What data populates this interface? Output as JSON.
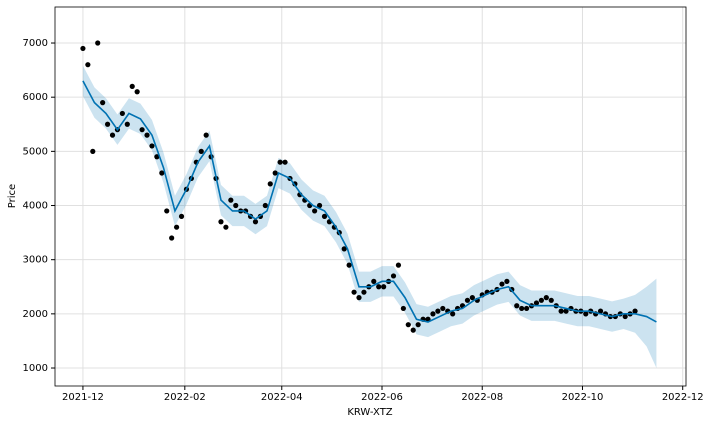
{
  "chart_data": {
    "type": "forecast",
    "xlabel": "KRW-XTZ",
    "ylabel": "Price",
    "xlim": [
      "2021-11-14",
      "2022-12-03"
    ],
    "ylim": [
      668,
      7665
    ],
    "xticks": [
      {
        "value": "2021-12-01",
        "label": "2021-12"
      },
      {
        "value": "2022-02-01",
        "label": "2022-02"
      },
      {
        "value": "2022-04-01",
        "label": "2022-04"
      },
      {
        "value": "2022-06-01",
        "label": "2022-06"
      },
      {
        "value": "2022-08-01",
        "label": "2022-08"
      },
      {
        "value": "2022-10-01",
        "label": "2022-10"
      },
      {
        "value": "2022-12-01",
        "label": "2022-12"
      }
    ],
    "yticks": [
      1000,
      2000,
      3000,
      4000,
      5000,
      6000,
      7000
    ],
    "grid": true,
    "series": [
      {
        "type": "scatter",
        "color": "#000000",
        "x": [
          "2021-12-01",
          "2021-12-04",
          "2021-12-07",
          "2021-12-10",
          "2021-12-13",
          "2021-12-16",
          "2021-12-19",
          "2021-12-22",
          "2021-12-25",
          "2021-12-28",
          "2021-12-31",
          "2022-01-03",
          "2022-01-06",
          "2022-01-09",
          "2022-01-12",
          "2022-01-15",
          "2022-01-18",
          "2022-01-21",
          "2022-01-24",
          "2022-01-27",
          "2022-01-30",
          "2022-02-02",
          "2022-02-05",
          "2022-02-08",
          "2022-02-11",
          "2022-02-14",
          "2022-02-17",
          "2022-02-20",
          "2022-02-23",
          "2022-02-26",
          "2022-03-01",
          "2022-03-04",
          "2022-03-07",
          "2022-03-10",
          "2022-03-13",
          "2022-03-16",
          "2022-03-19",
          "2022-03-22",
          "2022-03-25",
          "2022-03-28",
          "2022-03-31",
          "2022-04-03",
          "2022-04-06",
          "2022-04-09",
          "2022-04-12",
          "2022-04-15",
          "2022-04-18",
          "2022-04-21",
          "2022-04-24",
          "2022-04-27",
          "2022-04-30",
          "2022-05-03",
          "2022-05-06",
          "2022-05-09",
          "2022-05-12",
          "2022-05-15",
          "2022-05-18",
          "2022-05-21",
          "2022-05-24",
          "2022-05-27",
          "2022-05-30",
          "2022-06-02",
          "2022-06-05",
          "2022-06-08",
          "2022-06-11",
          "2022-06-14",
          "2022-06-17",
          "2022-06-20",
          "2022-06-23",
          "2022-06-26",
          "2022-06-29",
          "2022-07-02",
          "2022-07-05",
          "2022-07-08",
          "2022-07-11",
          "2022-07-14",
          "2022-07-17",
          "2022-07-20",
          "2022-07-23",
          "2022-07-26",
          "2022-07-29",
          "2022-08-01",
          "2022-08-04",
          "2022-08-07",
          "2022-08-10",
          "2022-08-13",
          "2022-08-16",
          "2022-08-19",
          "2022-08-22",
          "2022-08-25",
          "2022-08-28",
          "2022-08-31",
          "2022-09-03",
          "2022-09-06",
          "2022-09-09",
          "2022-09-12",
          "2022-09-15",
          "2022-09-18",
          "2022-09-21",
          "2022-09-24",
          "2022-09-27",
          "2022-09-30",
          "2022-10-03",
          "2022-10-06",
          "2022-10-09",
          "2022-10-12",
          "2022-10-15",
          "2022-10-18",
          "2022-10-21",
          "2022-10-24",
          "2022-10-27",
          "2022-10-30",
          "2022-11-02"
        ],
        "values": [
          6900,
          6600,
          5000,
          7000,
          5900,
          5500,
          5300,
          5400,
          5700,
          5500,
          6200,
          6100,
          5400,
          5300,
          5100,
          4900,
          4600,
          3900,
          3400,
          3600,
          3800,
          4300,
          4500,
          4800,
          5000,
          5300,
          4900,
          4500,
          3700,
          3600,
          4100,
          4000,
          3900,
          3900,
          3800,
          3700,
          3800,
          4000,
          4400,
          4600,
          4800,
          4800,
          4500,
          4400,
          4200,
          4100,
          4000,
          3900,
          4000,
          3800,
          3700,
          3600,
          3500,
          3200,
          2900,
          2400,
          2300,
          2400,
          2500,
          2600,
          2500,
          2500,
          2600,
          2700,
          2900,
          2100,
          1800,
          1700,
          1800,
          1900,
          1900,
          2000,
          2050,
          2100,
          2050,
          2000,
          2100,
          2150,
          2250,
          2300,
          2250,
          2350,
          2400,
          2400,
          2450,
          2550,
          2600,
          2450,
          2150,
          2100,
          2100,
          2150,
          2200,
          2250,
          2300,
          2250,
          2150,
          2050,
          2050,
          2100,
          2050,
          2050,
          2000,
          2050,
          2000,
          2050,
          2000,
          1950,
          1950,
          2000,
          1950,
          2000,
          2050
        ]
      },
      {
        "type": "forecast-line",
        "color": "#0072b2",
        "band_color": "#0072b2",
        "x": [
          "2021-12-01",
          "2021-12-08",
          "2021-12-15",
          "2021-12-22",
          "2021-12-29",
          "2022-01-05",
          "2022-01-12",
          "2022-01-19",
          "2022-01-26",
          "2022-02-02",
          "2022-02-09",
          "2022-02-16",
          "2022-02-23",
          "2022-03-02",
          "2022-03-09",
          "2022-03-16",
          "2022-03-23",
          "2022-03-30",
          "2022-04-06",
          "2022-04-13",
          "2022-04-20",
          "2022-04-27",
          "2022-05-04",
          "2022-05-11",
          "2022-05-18",
          "2022-05-25",
          "2022-06-01",
          "2022-06-08",
          "2022-06-15",
          "2022-06-22",
          "2022-06-29",
          "2022-07-06",
          "2022-07-13",
          "2022-07-20",
          "2022-07-27",
          "2022-08-03",
          "2022-08-10",
          "2022-08-17",
          "2022-08-24",
          "2022-08-31",
          "2022-09-07",
          "2022-09-14",
          "2022-09-21",
          "2022-09-28",
          "2022-10-05",
          "2022-10-12",
          "2022-10-19",
          "2022-10-26",
          "2022-11-02",
          "2022-11-09",
          "2022-11-15"
        ],
        "values": [
          6300,
          5900,
          5700,
          5400,
          5700,
          5600,
          5300,
          4700,
          3900,
          4300,
          4800,
          5100,
          4100,
          3900,
          3900,
          3750,
          3900,
          4600,
          4500,
          4200,
          4000,
          3900,
          3600,
          3200,
          2500,
          2500,
          2600,
          2600,
          2300,
          1900,
          1850,
          1950,
          2050,
          2100,
          2250,
          2350,
          2450,
          2500,
          2250,
          2150,
          2150,
          2150,
          2100,
          2050,
          2050,
          2000,
          1950,
          2000,
          2000,
          1950,
          1850
        ],
        "lower": [
          6020,
          5620,
          5420,
          5120,
          5420,
          5320,
          5020,
          4420,
          3620,
          4020,
          4520,
          4820,
          3820,
          3620,
          3620,
          3470,
          3620,
          4320,
          4220,
          3920,
          3720,
          3620,
          3320,
          2920,
          2220,
          2220,
          2320,
          2320,
          2020,
          1620,
          1570,
          1670,
          1770,
          1820,
          1970,
          2070,
          2170,
          2220,
          1970,
          1870,
          1870,
          1870,
          1820,
          1770,
          1770,
          1720,
          1670,
          1720,
          1650,
          1400,
          1000
        ],
        "upper": [
          6580,
          6180,
          5980,
          5680,
          5980,
          5880,
          5580,
          4980,
          4180,
          4580,
          5080,
          5380,
          4380,
          4180,
          4180,
          4030,
          4180,
          4880,
          4780,
          4480,
          4280,
          4180,
          3880,
          3480,
          2780,
          2780,
          2880,
          2880,
          2580,
          2180,
          2130,
          2230,
          2330,
          2380,
          2530,
          2630,
          2730,
          2780,
          2530,
          2430,
          2430,
          2430,
          2380,
          2330,
          2330,
          2280,
          2230,
          2280,
          2350,
          2500,
          2650
        ]
      }
    ]
  }
}
